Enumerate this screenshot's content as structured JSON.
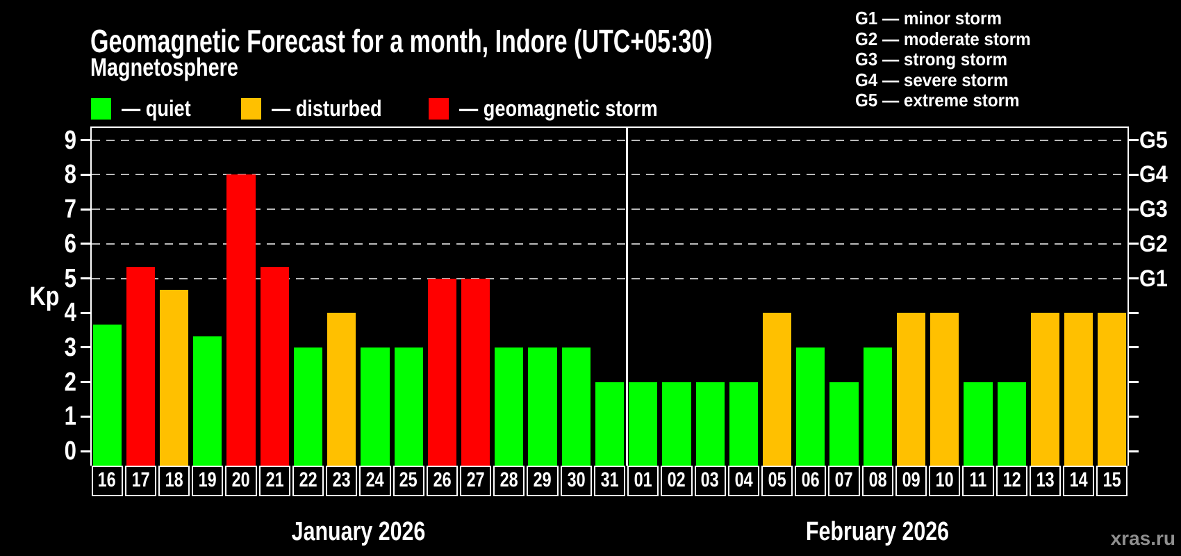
{
  "subtitle": "Magnetosphere",
  "legend": {
    "items": [
      {
        "name": "quiet",
        "label": "— quiet",
        "color": "#00ff00"
      },
      {
        "name": "disturbed",
        "label": "— disturbed",
        "color": "#ffc000"
      },
      {
        "name": "storm",
        "label": "— geomagnetic storm",
        "color": "#ff0000"
      }
    ]
  },
  "g_scale_legend": {
    "lines": [
      "G1 — minor storm",
      "G2 — moderate storm",
      "G3 — strong storm",
      "G4 — severe storm",
      "G5 — extreme storm"
    ]
  },
  "watermark": "xras.ru",
  "chart_data": {
    "type": "bar",
    "title": "Geomagnetic Forecast for a month, Indore (UTC+05:30)",
    "ylabel": "Kp",
    "ylim": [
      0,
      9.8
    ],
    "y_ticks": [
      0,
      1,
      2,
      3,
      4,
      5,
      6,
      7,
      8,
      9
    ],
    "gridlines_at": [
      5,
      6,
      7,
      8,
      9
    ],
    "grid_style": "dashed horizontal lines at Kp 5 through 9 only",
    "right_axis_labels": [
      {
        "kp": 5,
        "label": "G1"
      },
      {
        "kp": 6,
        "label": "G2"
      },
      {
        "kp": 7,
        "label": "G3"
      },
      {
        "kp": 8,
        "label": "G4"
      },
      {
        "kp": 9,
        "label": "G5"
      }
    ],
    "categories": [
      "16",
      "17",
      "18",
      "19",
      "20",
      "21",
      "22",
      "23",
      "24",
      "25",
      "26",
      "27",
      "28",
      "29",
      "30",
      "31",
      "01",
      "02",
      "03",
      "04",
      "05",
      "06",
      "07",
      "08",
      "09",
      "10",
      "11",
      "12",
      "13",
      "14",
      "15"
    ],
    "values": [
      3.67,
      5.33,
      4.67,
      3.33,
      8,
      5.33,
      3,
      4,
      3,
      3,
      5,
      5,
      3,
      3,
      3,
      2,
      2,
      2,
      2,
      2,
      4,
      3,
      2,
      3,
      4,
      4,
      2,
      2,
      4,
      4,
      4
    ],
    "statuses": [
      "quiet",
      "storm",
      "disturbed",
      "quiet",
      "storm",
      "storm",
      "quiet",
      "disturbed",
      "quiet",
      "quiet",
      "storm",
      "storm",
      "quiet",
      "quiet",
      "quiet",
      "quiet",
      "quiet",
      "quiet",
      "quiet",
      "quiet",
      "disturbed",
      "quiet",
      "quiet",
      "quiet",
      "disturbed",
      "disturbed",
      "quiet",
      "quiet",
      "disturbed",
      "disturbed",
      "disturbed"
    ],
    "color_map": {
      "quiet": "#00ff00",
      "disturbed": "#ffc000",
      "storm": "#ff0000"
    },
    "months": [
      {
        "label": "January 2026",
        "start_index": 0,
        "days": 16
      },
      {
        "label": "February 2026",
        "start_index": 16,
        "days": 15
      }
    ],
    "legend_position": "top-left"
  }
}
